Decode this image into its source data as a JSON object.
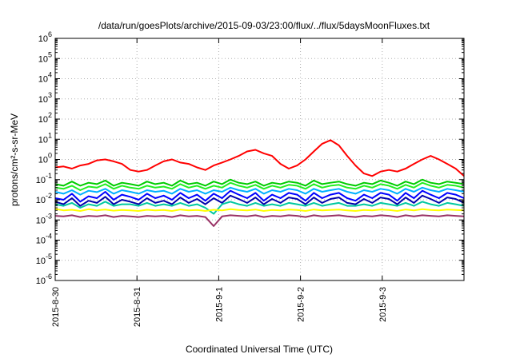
{
  "chart_data": {
    "type": "line",
    "title": "/data/run/goesPlots/archive/2015-09-03/23:00/flux/../flux/5daysMoonFluxes.txt",
    "xlabel": "Coordinated Universal Time (UTC)",
    "ylabel": "protons/cm²-s-sr-MeV",
    "y_scale": "log",
    "ylim": [
      1e-06,
      1000000.0
    ],
    "y_ticks": [
      {
        "base": "10",
        "exp": "-6"
      },
      {
        "base": "10",
        "exp": "-5"
      },
      {
        "base": "10",
        "exp": "-4"
      },
      {
        "base": "10",
        "exp": "-3"
      },
      {
        "base": "10",
        "exp": "-2"
      },
      {
        "base": "10",
        "exp": "-1"
      },
      {
        "base": "10",
        "exp": "0"
      },
      {
        "base": "10",
        "exp": "1"
      },
      {
        "base": "10",
        "exp": "2"
      },
      {
        "base": "10",
        "exp": "3"
      },
      {
        "base": "10",
        "exp": "4"
      },
      {
        "base": "10",
        "exp": "5"
      },
      {
        "base": "10",
        "exp": "6"
      }
    ],
    "x_ticks": [
      "2015-8-30",
      "2015-8-31",
      "2015-9-1",
      "2015-9-2",
      "2015-9-3"
    ],
    "xlim": [
      "2015-08-30",
      "2015-09-04"
    ],
    "grid": true,
    "series": [
      {
        "color": "#ff0000",
        "values": [
          0.4,
          0.45,
          0.35,
          0.5,
          0.6,
          0.9,
          1.0,
          0.8,
          0.6,
          0.3,
          0.25,
          0.3,
          0.5,
          0.8,
          1.0,
          0.7,
          0.6,
          0.4,
          0.3,
          0.5,
          0.7,
          1.0,
          1.5,
          2.5,
          3.0,
          2.0,
          1.5,
          0.6,
          0.35,
          0.5,
          1.0,
          2.5,
          6.0,
          9.0,
          5.0,
          1.5,
          0.5,
          0.2,
          0.15,
          0.25,
          0.3,
          0.25,
          0.35,
          0.6,
          1.0,
          1.5,
          1.0,
          0.6,
          0.35,
          0.15
        ]
      },
      {
        "color": "#00cc00",
        "values": [
          0.06,
          0.05,
          0.08,
          0.05,
          0.07,
          0.06,
          0.09,
          0.05,
          0.07,
          0.06,
          0.05,
          0.08,
          0.06,
          0.07,
          0.05,
          0.09,
          0.06,
          0.07,
          0.05,
          0.08,
          0.06,
          0.1,
          0.07,
          0.06,
          0.08,
          0.05,
          0.07,
          0.06,
          0.08,
          0.07,
          0.05,
          0.09,
          0.06,
          0.07,
          0.08,
          0.06,
          0.05,
          0.07,
          0.06,
          0.09,
          0.07,
          0.05,
          0.08,
          0.06,
          0.1,
          0.07,
          0.06,
          0.08,
          0.07,
          0.06
        ]
      },
      {
        "color": "#22ee22",
        "values": [
          0.04,
          0.035,
          0.05,
          0.03,
          0.045,
          0.04,
          0.06,
          0.035,
          0.05,
          0.04,
          0.035,
          0.05,
          0.04,
          0.045,
          0.035,
          0.06,
          0.04,
          0.05,
          0.035,
          0.05,
          0.04,
          0.07,
          0.05,
          0.04,
          0.055,
          0.035,
          0.05,
          0.04,
          0.055,
          0.05,
          0.035,
          0.06,
          0.04,
          0.05,
          0.055,
          0.04,
          0.035,
          0.05,
          0.04,
          0.06,
          0.05,
          0.035,
          0.055,
          0.04,
          0.07,
          0.05,
          0.04,
          0.055,
          0.05,
          0.04
        ]
      },
      {
        "color": "#00b0ff",
        "values": [
          0.025,
          0.02,
          0.03,
          0.018,
          0.028,
          0.024,
          0.035,
          0.02,
          0.03,
          0.025,
          0.02,
          0.03,
          0.025,
          0.028,
          0.02,
          0.035,
          0.025,
          0.03,
          0.02,
          0.03,
          0.025,
          0.04,
          0.03,
          0.025,
          0.035,
          0.02,
          0.03,
          0.025,
          0.035,
          0.03,
          0.02,
          0.035,
          0.025,
          0.03,
          0.035,
          0.025,
          0.02,
          0.03,
          0.025,
          0.035,
          0.03,
          0.02,
          0.035,
          0.025,
          0.04,
          0.03,
          0.025,
          0.035,
          0.03,
          0.025
        ]
      },
      {
        "color": "#0000ff",
        "values": [
          0.012,
          0.01,
          0.02,
          0.008,
          0.015,
          0.012,
          0.025,
          0.01,
          0.018,
          0.014,
          0.01,
          0.02,
          0.012,
          0.016,
          0.01,
          0.022,
          0.012,
          0.018,
          0.009,
          0.02,
          0.012,
          0.028,
          0.018,
          0.012,
          0.022,
          0.009,
          0.018,
          0.012,
          0.022,
          0.018,
          0.009,
          0.022,
          0.012,
          0.018,
          0.022,
          0.012,
          0.009,
          0.018,
          0.012,
          0.022,
          0.018,
          0.009,
          0.022,
          0.012,
          0.028,
          0.018,
          0.012,
          0.022,
          0.018,
          0.012
        ]
      },
      {
        "color": "#0000aa",
        "values": [
          0.008,
          0.006,
          0.012,
          0.005,
          0.009,
          0.007,
          0.014,
          0.006,
          0.01,
          0.008,
          0.006,
          0.012,
          0.007,
          0.009,
          0.006,
          0.013,
          0.007,
          0.011,
          0.006,
          0.012,
          0.007,
          0.016,
          0.011,
          0.007,
          0.013,
          0.006,
          0.011,
          0.007,
          0.013,
          0.011,
          0.006,
          0.013,
          0.007,
          0.011,
          0.013,
          0.007,
          0.006,
          0.011,
          0.007,
          0.013,
          0.011,
          0.006,
          0.013,
          0.007,
          0.016,
          0.011,
          0.007,
          0.013,
          0.011,
          0.007
        ]
      },
      {
        "color": "#00c8a0",
        "values": [
          0.006,
          0.005,
          0.007,
          0.004,
          0.006,
          0.005,
          0.008,
          0.005,
          0.006,
          0.006,
          0.005,
          0.007,
          0.005,
          0.006,
          0.005,
          0.007,
          0.005,
          0.006,
          0.004,
          0.002,
          0.006,
          0.008,
          0.006,
          0.005,
          0.007,
          0.005,
          0.006,
          0.005,
          0.007,
          0.006,
          0.005,
          0.007,
          0.005,
          0.006,
          0.007,
          0.005,
          0.005,
          0.006,
          0.005,
          0.007,
          0.006,
          0.005,
          0.007,
          0.005,
          0.008,
          0.006,
          0.005,
          0.007,
          0.006,
          0.005
        ]
      },
      {
        "color": "#ffff00",
        "values": [
          0.0035,
          0.003,
          0.0032,
          0.0028,
          0.0034,
          0.003,
          0.0033,
          0.0029,
          0.0031,
          0.003,
          0.0028,
          0.0032,
          0.003,
          0.0031,
          0.0028,
          0.0033,
          0.003,
          0.0031,
          0.0028,
          0.0032,
          0.003,
          0.0034,
          0.0031,
          0.003,
          0.0033,
          0.0028,
          0.0031,
          0.003,
          0.0033,
          0.0031,
          0.0028,
          0.0033,
          0.003,
          0.0031,
          0.0033,
          0.003,
          0.0028,
          0.0031,
          0.003,
          0.0033,
          0.0031,
          0.0028,
          0.0033,
          0.003,
          0.0034,
          0.0031,
          0.003,
          0.0033,
          0.0031,
          0.003
        ]
      },
      {
        "color": "#993366",
        "values": [
          0.0016,
          0.0015,
          0.0017,
          0.0014,
          0.0016,
          0.0015,
          0.0017,
          0.0014,
          0.0016,
          0.0015,
          0.0014,
          0.0016,
          0.0015,
          0.0016,
          0.0014,
          0.0017,
          0.0015,
          0.0016,
          0.0014,
          0.0005,
          0.0015,
          0.0017,
          0.0016,
          0.0015,
          0.0017,
          0.0014,
          0.0016,
          0.0015,
          0.0017,
          0.0016,
          0.0014,
          0.0017,
          0.0015,
          0.0016,
          0.0017,
          0.0015,
          0.0014,
          0.0016,
          0.0015,
          0.0017,
          0.0016,
          0.0014,
          0.0017,
          0.0015,
          0.0017,
          0.0016,
          0.0015,
          0.0017,
          0.0016,
          0.0015
        ]
      }
    ]
  }
}
